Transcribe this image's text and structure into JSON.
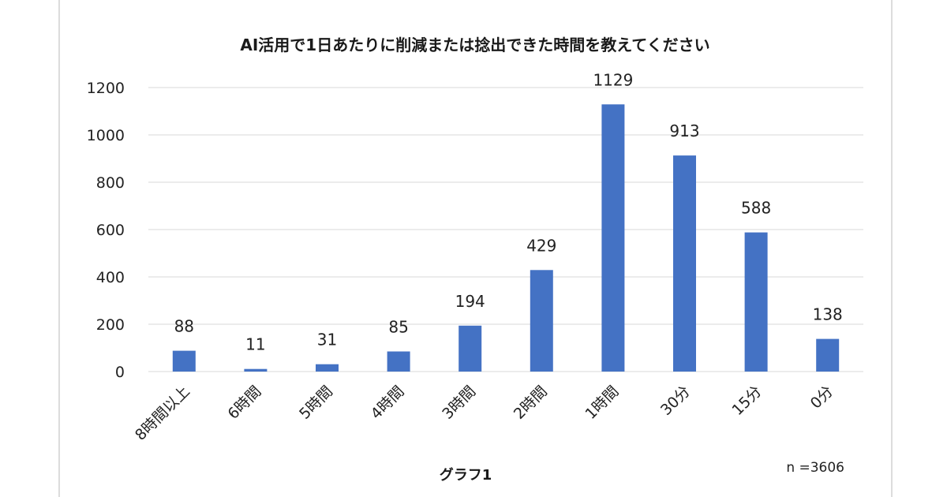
{
  "chart_data": {
    "type": "bar",
    "title": "AI活用で1日あたりに削減または捻出できた時間を教えてください",
    "xlabel": "グラフ1",
    "ylabel": "",
    "note": "n =3606",
    "categories": [
      "8時間以上",
      "6時間",
      "5時間",
      "4時間",
      "3時間",
      "2時間",
      "1時間",
      "30分",
      "15分",
      "0分"
    ],
    "values": [
      88,
      11,
      31,
      85,
      194,
      429,
      1129,
      913,
      588,
      138
    ],
    "yticks": [
      "0",
      "200",
      "400",
      "600",
      "800",
      "1000",
      "1200"
    ],
    "ylim": [
      0,
      1200
    ],
    "grid": true,
    "bar_color": "#4472C4"
  }
}
